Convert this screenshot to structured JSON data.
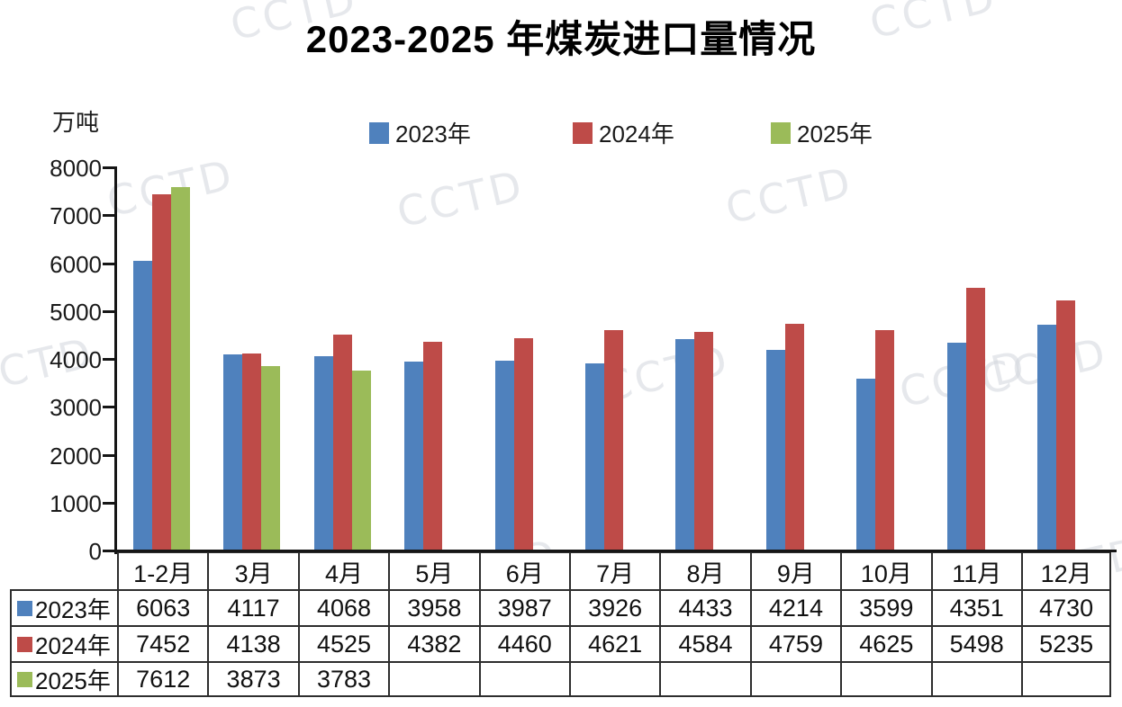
{
  "title": "2023-2025 年煤炭进口量情况",
  "watermark_text": "CCTD",
  "chart_data": {
    "type": "bar",
    "title": "2023-2025 年煤炭进口量情况",
    "unit": "万吨",
    "categories": [
      "1-2月",
      "3月",
      "4月",
      "5月",
      "6月",
      "7月",
      "8月",
      "9月",
      "10月",
      "11月",
      "12月"
    ],
    "series": [
      {
        "name": "2023年",
        "color": "#4f81bd",
        "values": [
          6063,
          4117,
          4068,
          3958,
          3987,
          3926,
          4433,
          4214,
          3599,
          4351,
          4730
        ]
      },
      {
        "name": "2024年",
        "color": "#be4b48",
        "values": [
          7452,
          4138,
          4525,
          4382,
          4460,
          4621,
          4584,
          4759,
          4625,
          5498,
          5235
        ]
      },
      {
        "name": "2025年",
        "color": "#9bbb59",
        "values": [
          7612,
          3873,
          3783,
          null,
          null,
          null,
          null,
          null,
          null,
          null,
          null
        ]
      }
    ],
    "ylim": [
      0,
      8000
    ],
    "ytick_step": 1000,
    "grid": false,
    "legend_position": "top",
    "data_table_shown": true
  }
}
